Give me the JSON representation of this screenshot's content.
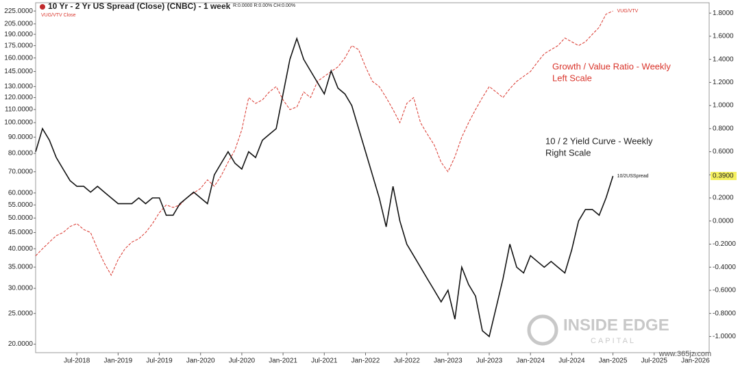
{
  "chart_data": {
    "type": "line",
    "title": "10 Yr - 2 Yr US Spread (Close) (CNBC) - 1 week",
    "subtitle": "R:0.0000 R:0.00% CH:0.00%",
    "series_caption": "VUG/VTV Close",
    "annotations": [
      "Growth / Value Ratio  - Weekly",
      "Left Scale",
      "10 / 2 Yield Curve - Weekly",
      "Right Scale"
    ],
    "watermark": [
      "INSIDE EDGE",
      "CAPITAL"
    ],
    "source": "www.365jz.com",
    "x": [
      "Jan-2018",
      "Feb-2018",
      "Mar-2018",
      "Apr-2018",
      "May-2018",
      "Jun-2018",
      "Jul-2018",
      "Aug-2018",
      "Sep-2018",
      "Oct-2018",
      "Nov-2018",
      "Dec-2018",
      "Jan-2019",
      "Feb-2019",
      "Mar-2019",
      "Apr-2019",
      "May-2019",
      "Jun-2019",
      "Jul-2019",
      "Aug-2019",
      "Sep-2019",
      "Oct-2019",
      "Nov-2019",
      "Dec-2019",
      "Jan-2020",
      "Feb-2020",
      "Mar-2020",
      "Apr-2020",
      "May-2020",
      "Jun-2020",
      "Jul-2020",
      "Aug-2020",
      "Sep-2020",
      "Oct-2020",
      "Nov-2020",
      "Dec-2020",
      "Jan-2021",
      "Feb-2021",
      "Mar-2021",
      "Apr-2021",
      "May-2021",
      "Jun-2021",
      "Jul-2021",
      "Aug-2021",
      "Sep-2021",
      "Oct-2021",
      "Nov-2021",
      "Dec-2021",
      "Jan-2022",
      "Feb-2022",
      "Mar-2022",
      "Apr-2022",
      "May-2022",
      "Jun-2022",
      "Jul-2022",
      "Aug-2022",
      "Sep-2022",
      "Oct-2022",
      "Nov-2022",
      "Dec-2022",
      "Jan-2023",
      "Feb-2023",
      "Mar-2023",
      "Apr-2023",
      "May-2023",
      "Jun-2023",
      "Jul-2023",
      "Aug-2023",
      "Sep-2023",
      "Oct-2023",
      "Nov-2023",
      "Dec-2023",
      "Jan-2024",
      "Feb-2024",
      "Mar-2024",
      "Apr-2024",
      "May-2024",
      "Jun-2024",
      "Jul-2024",
      "Aug-2024",
      "Sep-2024",
      "Oct-2024",
      "Nov-2024",
      "Dec-2024",
      "Jan-2025"
    ],
    "xlim": [
      "Jan-2018",
      "Mar-2026"
    ],
    "xticks": [
      "Jul-2018",
      "Jan-2019",
      "Jul-2019",
      "Jan-2020",
      "Jul-2020",
      "Jan-2021",
      "Jul-2021",
      "Jan-2022",
      "Jul-2022",
      "Jan-2023",
      "Jul-2023",
      "Jan-2024",
      "Jul-2024",
      "Jan-2025",
      "Jul-2025",
      "Jan-2026"
    ],
    "ylog": true,
    "ylim": [
      18.8,
      239
    ],
    "yticks": [
      {
        "value": 225,
        "label": "225.0000"
      },
      {
        "value": 205,
        "label": "205.0000"
      },
      {
        "value": 190,
        "label": "190.0000"
      },
      {
        "value": 175,
        "label": "175.0000"
      },
      {
        "value": 160,
        "label": "160.0000"
      },
      {
        "value": 145,
        "label": "145.0000"
      },
      {
        "value": 130,
        "label": "130.0000"
      },
      {
        "value": 120,
        "label": "120.0000"
      },
      {
        "value": 110,
        "label": "110.0000"
      },
      {
        "value": 100,
        "label": "100.0000"
      },
      {
        "value": 90,
        "label": "90.0000"
      },
      {
        "value": 80,
        "label": "80.0000"
      },
      {
        "value": 70,
        "label": "70.0000"
      },
      {
        "value": 60,
        "label": "60.0000"
      },
      {
        "value": 55,
        "label": "55.0000"
      },
      {
        "value": 50,
        "label": "50.0000"
      },
      {
        "value": 45,
        "label": "45.0000"
      },
      {
        "value": 40,
        "label": "40.0000"
      },
      {
        "value": 35,
        "label": "35.0000"
      },
      {
        "value": 30,
        "label": "30.0000"
      },
      {
        "value": 25,
        "label": "25.0000"
      },
      {
        "value": 20,
        "label": "20.0000"
      }
    ],
    "y2lim": [
      -1.14,
      1.89
    ],
    "y2ticks": [
      {
        "value": 1.8,
        "label": "1.8000"
      },
      {
        "value": 1.6,
        "label": "1.6000"
      },
      {
        "value": 1.4,
        "label": "1.4000"
      },
      {
        "value": 1.2,
        "label": "1.2000"
      },
      {
        "value": 1,
        "label": "1.0000"
      },
      {
        "value": 0.8,
        "label": "0.8000"
      },
      {
        "value": 0.6,
        "label": "0.6000"
      },
      {
        "value": 0.4,
        "label": "0.4000"
      },
      {
        "value": 0.2,
        "label": "0.2000"
      },
      {
        "value": 0,
        "label": "0.0000"
      },
      {
        "value": -0.2,
        "label": "-0.2000"
      },
      {
        "value": -0.4,
        "label": "-0.4000"
      },
      {
        "value": -0.6,
        "label": "-0.6000"
      },
      {
        "value": -0.8,
        "label": "-0.8000"
      },
      {
        "value": -1,
        "label": "-1.0000"
      }
    ],
    "y2_marker": {
      "value": 0.39,
      "label": "0.3900"
    },
    "grid": false,
    "series": [
      {
        "name": "VUG/VTV",
        "color": "#d9342b",
        "dashed": true,
        "axis": "y",
        "values": [
          38,
          40,
          42,
          44,
          45,
          47,
          48,
          46,
          45,
          40,
          36,
          33,
          37,
          40,
          42,
          43,
          45,
          48,
          52,
          55,
          54,
          55,
          58,
          60,
          62,
          66,
          63,
          68,
          75,
          82,
          95,
          120,
          115,
          118,
          125,
          130,
          118,
          110,
          112,
          125,
          120,
          135,
          140,
          145,
          150,
          160,
          175,
          170,
          150,
          135,
          130,
          120,
          110,
          100,
          115,
          120,
          100,
          92,
          85,
          75,
          70,
          78,
          90,
          100,
          110,
          120,
          130,
          125,
          120,
          128,
          135,
          140,
          145,
          155,
          165,
          170,
          175,
          185,
          180,
          175,
          180,
          190,
          200,
          220,
          225
        ]
      },
      {
        "name": "10/2USSpread",
        "color": "#111111",
        "dashed": false,
        "axis": "y2",
        "values": [
          0.6,
          0.8,
          0.7,
          0.55,
          0.45,
          0.35,
          0.3,
          0.3,
          0.25,
          0.3,
          0.25,
          0.2,
          0.15,
          0.15,
          0.15,
          0.2,
          0.15,
          0.2,
          0.2,
          0.05,
          0.05,
          0.15,
          0.2,
          0.25,
          0.2,
          0.15,
          0.4,
          0.5,
          0.6,
          0.5,
          0.45,
          0.6,
          0.55,
          0.7,
          0.75,
          0.8,
          1.1,
          1.4,
          1.58,
          1.4,
          1.3,
          1.2,
          1.1,
          1.3,
          1.15,
          1.1,
          1.0,
          0.8,
          0.6,
          0.4,
          0.2,
          -0.05,
          0.3,
          0.0,
          -0.2,
          -0.3,
          -0.4,
          -0.5,
          -0.6,
          -0.7,
          -0.6,
          -0.85,
          -0.4,
          -0.55,
          -0.65,
          -0.95,
          -1.0,
          -0.75,
          -0.5,
          -0.2,
          -0.4,
          -0.45,
          -0.3,
          -0.35,
          -0.4,
          -0.35,
          -0.4,
          -0.45,
          -0.25,
          0.0,
          0.1,
          0.1,
          0.05,
          0.2,
          0.39
        ]
      }
    ]
  }
}
